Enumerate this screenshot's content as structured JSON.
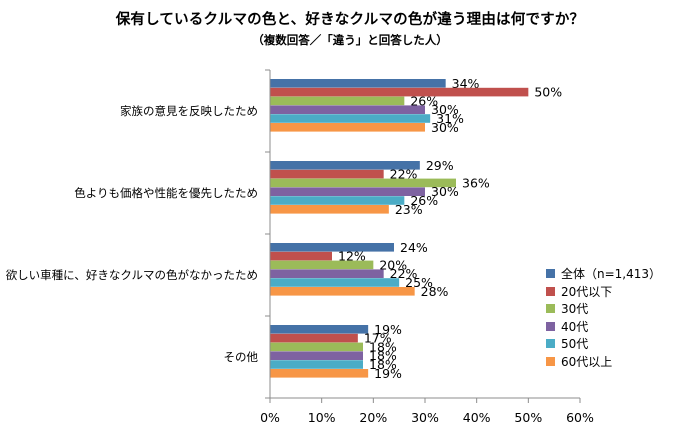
{
  "chart_data": {
    "type": "bar",
    "orientation": "horizontal",
    "title": "保有しているクルマの色と、好きなクルマの色が違う理由は何ですか？",
    "subtitle": "（複数回答／「違う」と回答した人）",
    "categories": [
      "家族の意見を反映したため",
      "色よりも価格や性能を優先したため",
      "欲しい車種に、好きなクルマの色がなかったため",
      "その他"
    ],
    "series": [
      {
        "name": "全体（n=1,413）",
        "color": "#4572A7",
        "values": [
          34,
          29,
          24,
          19
        ]
      },
      {
        "name": "20代以下",
        "color": "#C0504D",
        "values": [
          50,
          22,
          12,
          17
        ]
      },
      {
        "name": "30代",
        "color": "#9BBB59",
        "values": [
          26,
          36,
          20,
          18
        ]
      },
      {
        "name": "40代",
        "color": "#7E62A1",
        "values": [
          30,
          30,
          22,
          18
        ]
      },
      {
        "name": "50代",
        "color": "#4BACC6",
        "values": [
          31,
          26,
          25,
          18
        ]
      },
      {
        "name": "60代以上",
        "color": "#F79646",
        "values": [
          30,
          23,
          28,
          19
        ]
      }
    ],
    "value_suffix": "%",
    "xlim": [
      0,
      60
    ],
    "xticks": [
      "0%",
      "10%",
      "20%",
      "30%",
      "40%",
      "50%",
      "60%"
    ],
    "grid": false,
    "legend_position": "right"
  }
}
